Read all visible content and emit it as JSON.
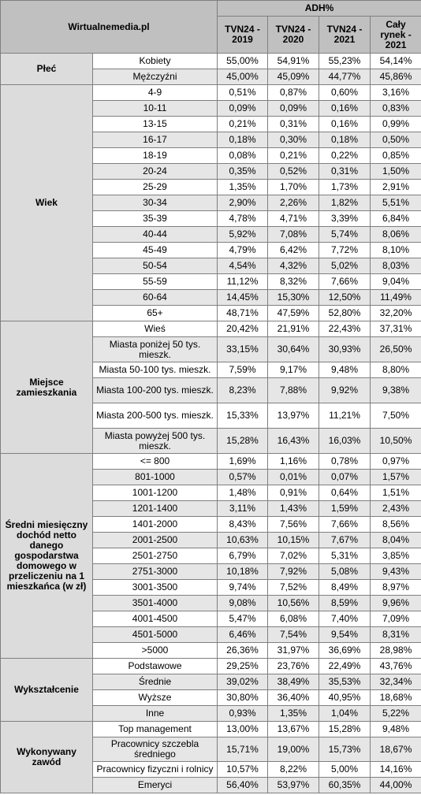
{
  "header": {
    "brand": "Wirtualnemedia.pl",
    "group": "ADH%",
    "columns": [
      "TVN24 - 2019",
      "TVN24 - 2020",
      "TVN24 - 2021",
      "Cały rynek - 2021"
    ]
  },
  "sections": [
    {
      "label": "Płeć",
      "rows": [
        {
          "label": "Kobiety",
          "values": [
            "55,00%",
            "54,91%",
            "55,23%",
            "54,14%"
          ]
        },
        {
          "label": "Mężczyźni",
          "values": [
            "45,00%",
            "45,09%",
            "44,77%",
            "45,86%"
          ]
        }
      ]
    },
    {
      "label": "Wiek",
      "rows": [
        {
          "label": "4-9",
          "values": [
            "0,51%",
            "0,87%",
            "0,60%",
            "3,16%"
          ]
        },
        {
          "label": "10-11",
          "values": [
            "0,09%",
            "0,09%",
            "0,16%",
            "0,83%"
          ]
        },
        {
          "label": "13-15",
          "values": [
            "0,21%",
            "0,31%",
            "0,16%",
            "0,99%"
          ]
        },
        {
          "label": "16-17",
          "values": [
            "0,18%",
            "0,30%",
            "0,18%",
            "0,50%"
          ]
        },
        {
          "label": "18-19",
          "values": [
            "0,08%",
            "0,21%",
            "0,22%",
            "0,85%"
          ]
        },
        {
          "label": "20-24",
          "values": [
            "0,35%",
            "0,52%",
            "0,31%",
            "1,50%"
          ]
        },
        {
          "label": "25-29",
          "values": [
            "1,35%",
            "1,70%",
            "1,73%",
            "2,91%"
          ]
        },
        {
          "label": "30-34",
          "values": [
            "2,90%",
            "2,26%",
            "1,82%",
            "5,51%"
          ]
        },
        {
          "label": "35-39",
          "values": [
            "4,78%",
            "4,71%",
            "3,39%",
            "6,84%"
          ]
        },
        {
          "label": "40-44",
          "values": [
            "5,92%",
            "7,08%",
            "5,74%",
            "8,06%"
          ]
        },
        {
          "label": "45-49",
          "values": [
            "4,79%",
            "6,42%",
            "7,72%",
            "8,10%"
          ]
        },
        {
          "label": "50-54",
          "values": [
            "4,54%",
            "4,32%",
            "5,02%",
            "8,03%"
          ]
        },
        {
          "label": "55-59",
          "values": [
            "11,12%",
            "8,32%",
            "7,66%",
            "9,04%"
          ]
        },
        {
          "label": "60-64",
          "values": [
            "14,45%",
            "15,30%",
            "12,50%",
            "11,49%"
          ]
        },
        {
          "label": "65+",
          "values": [
            "48,71%",
            "47,59%",
            "52,80%",
            "32,20%"
          ]
        }
      ]
    },
    {
      "label": "Miejsce zamieszkania",
      "rows": [
        {
          "label": "Wieś",
          "values": [
            "20,42%",
            "21,91%",
            "22,43%",
            "37,31%"
          ]
        },
        {
          "label": "Miasta poniżej 50 tys. mieszk.",
          "values": [
            "33,15%",
            "30,64%",
            "30,93%",
            "26,50%"
          ]
        },
        {
          "label": "Miasta 50-100 tys. mieszk.",
          "values": [
            "7,59%",
            "9,17%",
            "9,48%",
            "8,80%"
          ]
        },
        {
          "label": "Miasta 100-200 tys. mieszk.",
          "values": [
            "8,23%",
            "7,88%",
            "9,92%",
            "9,38%"
          ]
        },
        {
          "label": "Miasta 200-500 tys. mieszk.",
          "values": [
            "15,33%",
            "13,97%",
            "11,21%",
            "7,50%"
          ]
        },
        {
          "label": "Miasta powyżej 500 tys. mieszk.",
          "values": [
            "15,28%",
            "16,43%",
            "16,03%",
            "10,50%"
          ]
        }
      ]
    },
    {
      "label": "Średni miesięczny dochód netto danego gospodarstwa domowego w przeliczeniu na 1 mieszkańca (w zł)",
      "rows": [
        {
          "label": "<= 800",
          "values": [
            "1,69%",
            "1,16%",
            "0,78%",
            "0,97%"
          ]
        },
        {
          "label": "801-1000",
          "values": [
            "0,57%",
            "0,01%",
            "0,07%",
            "1,57%"
          ]
        },
        {
          "label": "1001-1200",
          "values": [
            "1,48%",
            "0,91%",
            "0,64%",
            "1,51%"
          ]
        },
        {
          "label": "1201-1400",
          "values": [
            "3,11%",
            "1,43%",
            "1,59%",
            "2,43%"
          ]
        },
        {
          "label": "1401-2000",
          "values": [
            "8,43%",
            "7,56%",
            "7,66%",
            "8,56%"
          ]
        },
        {
          "label": "2001-2500",
          "values": [
            "10,63%",
            "10,15%",
            "7,67%",
            "8,04%"
          ]
        },
        {
          "label": "2501-2750",
          "values": [
            "6,79%",
            "7,02%",
            "5,31%",
            "3,85%"
          ]
        },
        {
          "label": "2751-3000",
          "values": [
            "10,18%",
            "7,92%",
            "5,08%",
            "9,43%"
          ]
        },
        {
          "label": "3001-3500",
          "values": [
            "9,74%",
            "7,52%",
            "8,49%",
            "8,97%"
          ]
        },
        {
          "label": "3501-4000",
          "values": [
            "9,08%",
            "10,56%",
            "8,59%",
            "9,96%"
          ]
        },
        {
          "label": "4001-4500",
          "values": [
            "5,47%",
            "6,08%",
            "7,40%",
            "7,09%"
          ]
        },
        {
          "label": "4501-5000",
          "values": [
            "6,46%",
            "7,54%",
            "9,54%",
            "8,31%"
          ]
        },
        {
          "label": ">5000",
          "values": [
            "26,36%",
            "31,97%",
            "36,69%",
            "28,98%"
          ]
        }
      ]
    },
    {
      "label": "Wykształcenie",
      "rows": [
        {
          "label": "Podstawowe",
          "values": [
            "29,25%",
            "23,76%",
            "22,49%",
            "43,76%"
          ]
        },
        {
          "label": "Średnie",
          "values": [
            "39,02%",
            "38,49%",
            "35,53%",
            "32,34%"
          ]
        },
        {
          "label": "Wyższe",
          "values": [
            "30,80%",
            "36,40%",
            "40,95%",
            "18,68%"
          ]
        },
        {
          "label": "Inne",
          "values": [
            "0,93%",
            "1,35%",
            "1,04%",
            "5,22%"
          ]
        }
      ]
    },
    {
      "label": "Wykonywany zawód",
      "rows": [
        {
          "label": "Top management",
          "values": [
            "13,00%",
            "13,67%",
            "15,28%",
            "9,48%"
          ]
        },
        {
          "label": "Pracownicy szczebla średniego",
          "values": [
            "15,71%",
            "19,00%",
            "15,73%",
            "18,67%"
          ]
        },
        {
          "label": "Pracownicy fizyczni i rolnicy",
          "values": [
            "10,57%",
            "8,22%",
            "5,00%",
            "14,16%"
          ]
        },
        {
          "label": "Emeryci",
          "values": [
            "56,40%",
            "53,97%",
            "60,35%",
            "44,00%"
          ]
        }
      ]
    }
  ]
}
